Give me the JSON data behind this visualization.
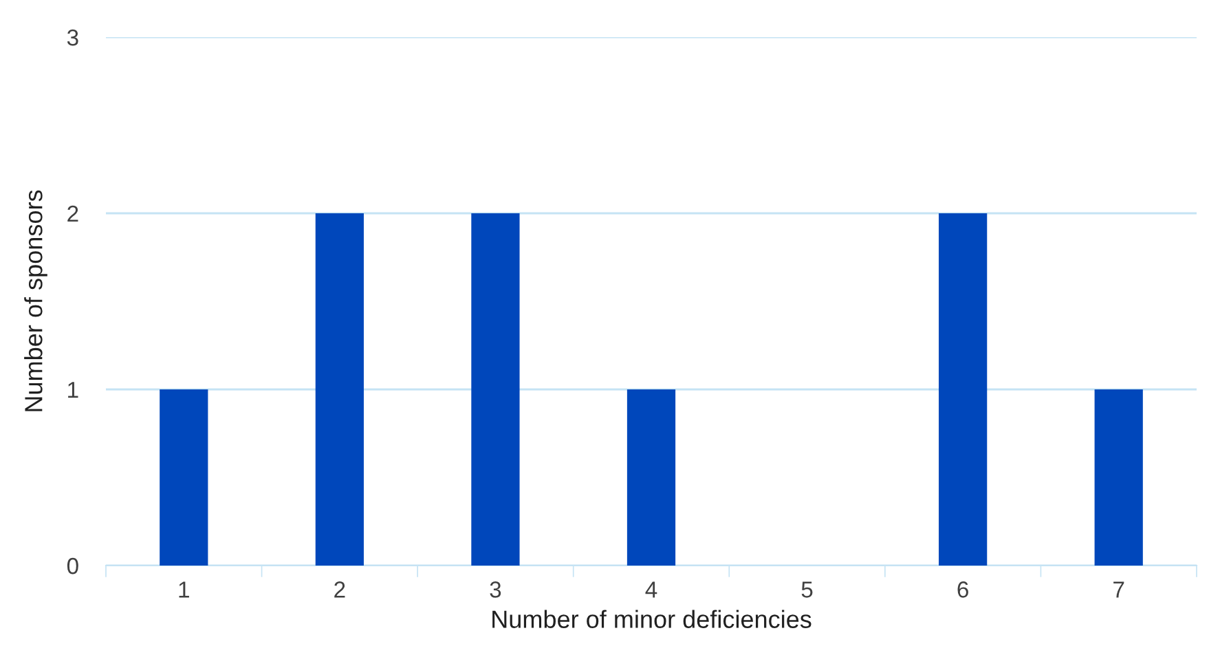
{
  "chart_data": {
    "type": "bar",
    "xlabel": "Number of minor deficiencies",
    "ylabel": "Number of sponsors",
    "categories": [
      "1",
      "2",
      "3",
      "4",
      "5",
      "6",
      "7"
    ],
    "values": [
      1,
      2,
      2,
      1,
      0,
      2,
      1
    ],
    "color": "#0047bb",
    "ylim": [
      0,
      3
    ],
    "yticks": [
      0,
      1,
      2,
      3
    ],
    "grid": "y",
    "legend": false
  }
}
